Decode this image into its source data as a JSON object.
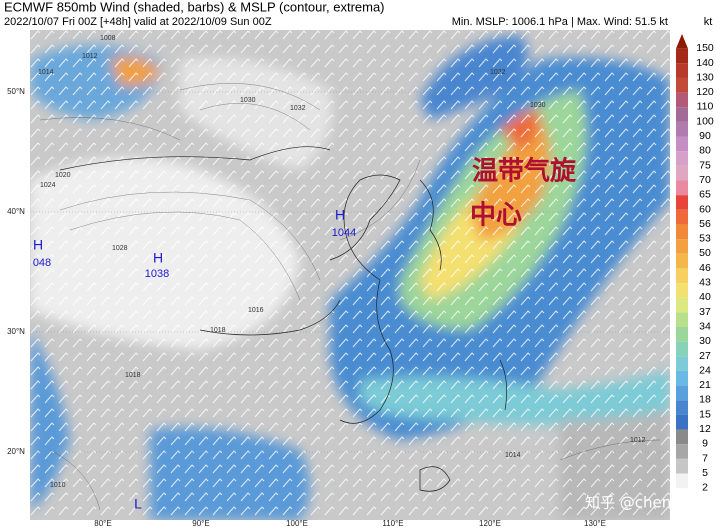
{
  "header": {
    "title": "ECMWF 850mb Wind (shaded, barbs) & MSLP (contour, extrema)",
    "subtitle": "2022/10/07 Fri 00Z [+48h] valid at 2022/10/09 Sun 00Z",
    "stats": "Min. MSLP: 1006.1 hPa | Max. Wind: 51.5 kt",
    "unit": "kt"
  },
  "colorbar": {
    "levels": [
      150,
      140,
      130,
      120,
      110,
      100,
      90,
      80,
      75,
      70,
      65,
      60,
      56,
      53,
      50,
      46,
      43,
      40,
      37,
      34,
      30,
      27,
      24,
      21,
      18,
      15,
      12,
      9,
      7,
      5,
      2
    ],
    "colors": [
      "#8b1a00",
      "#a52a1a",
      "#b73a2a",
      "#c14a3a",
      "#b35a78",
      "#a46a98",
      "#b07cb0",
      "#c58ec4",
      "#d6a0c8",
      "#e0a8c0",
      "#ea8aa0",
      "#e8453a",
      "#ee6a3a",
      "#f08a3a",
      "#f2a040",
      "#f4b84a",
      "#f6d060",
      "#f4e070",
      "#dce880",
      "#b8e08a",
      "#9cd69a",
      "#88d2b8",
      "#7ccbd6",
      "#6ab8e4",
      "#5aa0dc",
      "#4a86d0",
      "#3a72c4",
      "#8a8a8a",
      "#a6a6a6",
      "#c6c6c6",
      "#f2f2f2"
    ]
  },
  "axes": {
    "lon_labels": [
      "80°E",
      "90°E",
      "100°E",
      "110°E",
      "120°E",
      "130°E"
    ],
    "lat_labels": [
      "50°N",
      "40°N",
      "30°N",
      "20°N"
    ]
  },
  "pressure_centers": [
    {
      "type": "H",
      "value": "1044"
    },
    {
      "type": "H",
      "value": "048"
    },
    {
      "type": "H",
      "value": "1038"
    },
    {
      "type": "L"
    }
  ],
  "contour_labels": [
    "1008",
    "1012",
    "1014",
    "1020",
    "1024",
    "1028",
    "1030",
    "1032",
    "1016",
    "1018",
    "1010",
    "1014",
    "1012",
    "1030",
    "1022",
    "1018"
  ],
  "annotation": [
    "温带气旋",
    "中心"
  ],
  "watermark": "知乎 @chenzhe"
}
